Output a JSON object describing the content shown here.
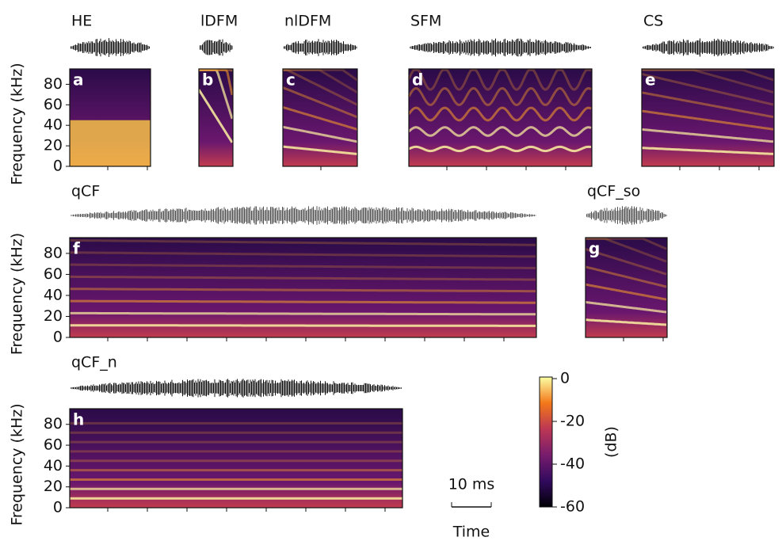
{
  "panels": [
    {
      "title": "HE",
      "letter": "a"
    },
    {
      "title": "lDFM",
      "letter": "b"
    },
    {
      "title": "nlDFM",
      "letter": "c"
    },
    {
      "title": "SFM",
      "letter": "d"
    },
    {
      "title": "CS",
      "letter": "e"
    },
    {
      "title": "qCF",
      "letter": "f"
    },
    {
      "title": "qCF_so",
      "letter": "g"
    },
    {
      "title": "qCF_n",
      "letter": "h"
    }
  ],
  "y_axis": {
    "label": "Frequency (kHz)",
    "lim": [
      0,
      95
    ],
    "ticks": [
      0,
      20,
      40,
      60,
      80
    ]
  },
  "colorbar": {
    "label": "(dB)",
    "lim": [
      -60,
      0
    ],
    "ticks": [
      0,
      -20,
      -40,
      -60
    ]
  },
  "scale_bar": {
    "label": "10 ms"
  },
  "x_axis": {
    "label": "Time"
  }
}
